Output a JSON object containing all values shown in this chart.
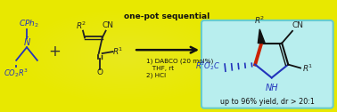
{
  "bg_color": "#e8e800",
  "box_facecolor": "#b8eeee",
  "box_edgecolor": "#66cccc",
  "blue": "#2233bb",
  "black": "#111111",
  "red": "#cc2200",
  "gray": "#444444",
  "one_pot_text": "one-pot sequential",
  "cond1": "1) DABCO (20 mol%)",
  "cond2": "   THF, rt",
  "cond3": "2) HCl",
  "yield_text": "up to 96% yield, dr > 20:1"
}
